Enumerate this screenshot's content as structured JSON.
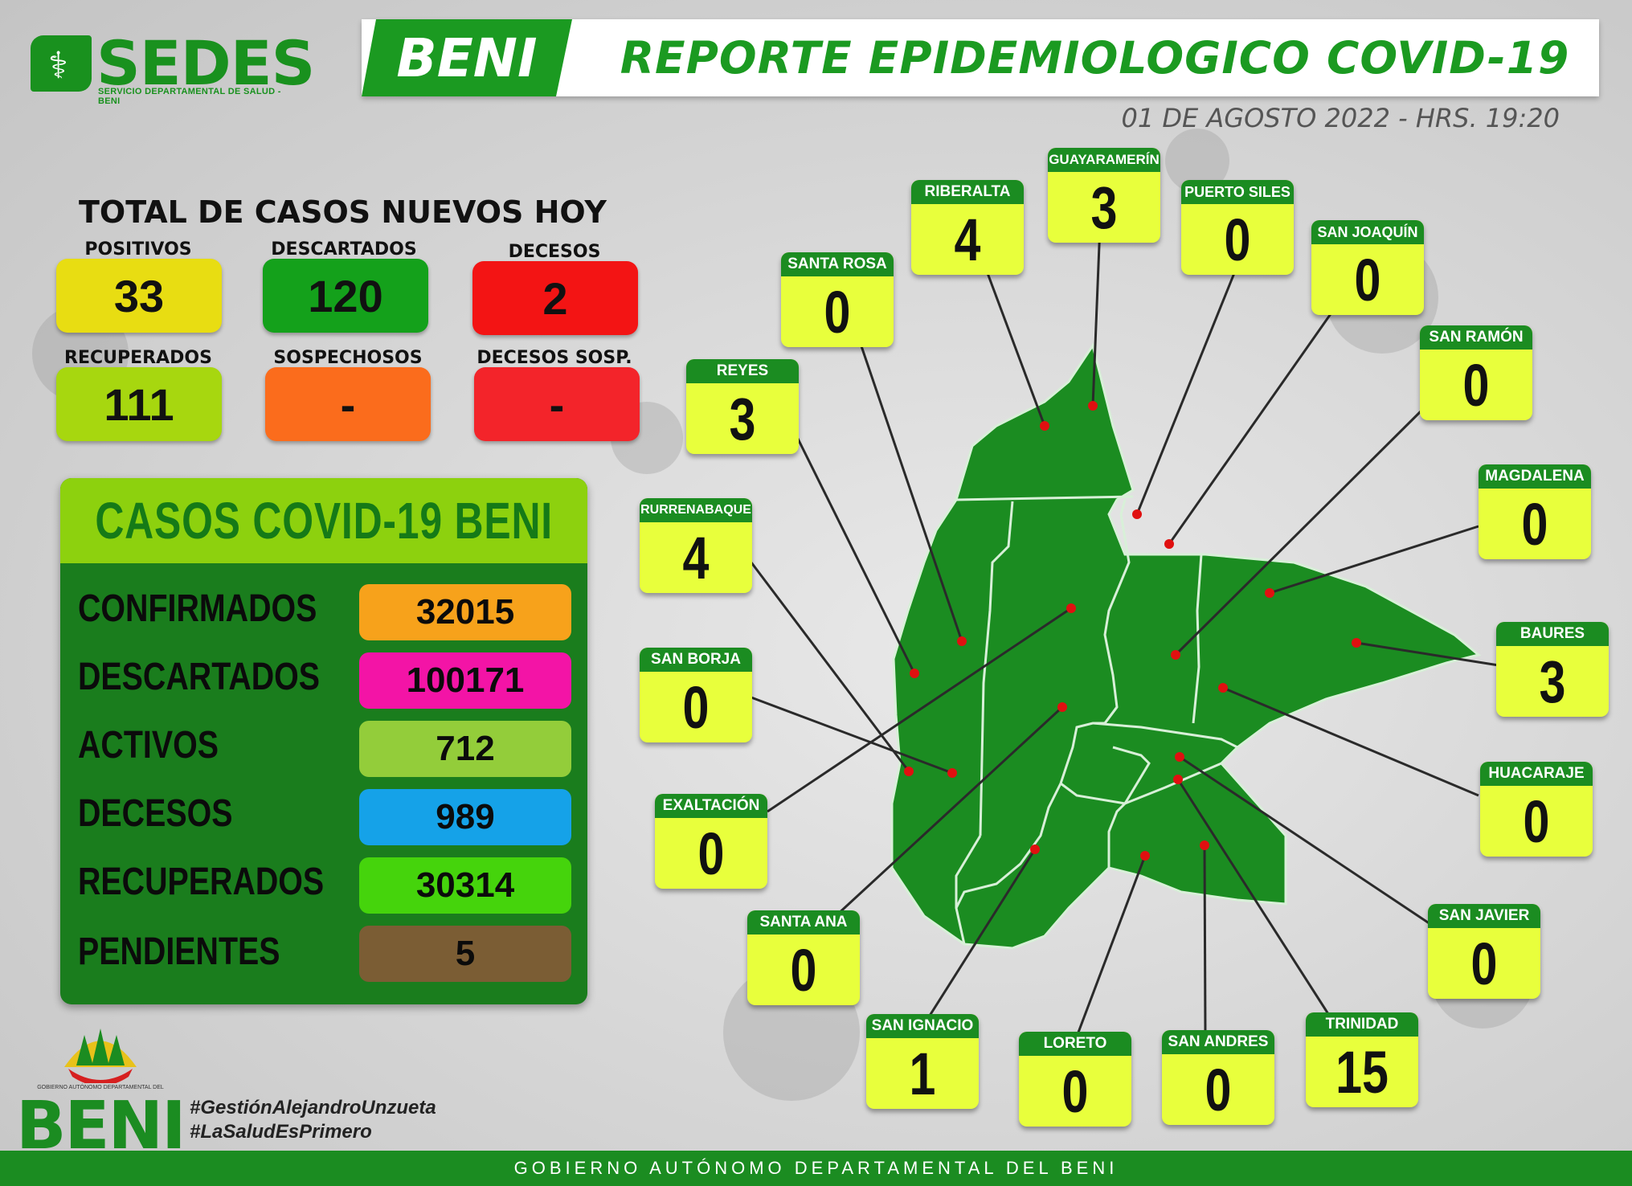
{
  "header": {
    "logo_word": "SEDES",
    "logo_sub": "SERVICIO DEPARTAMENTAL DE SALUD - BENI",
    "region_tab": "BENI",
    "title": "REPORTE EPIDEMIOLOGICO COVID-19",
    "date": "01 DE AGOSTO 2022  -  HRS. 19:20"
  },
  "totals": {
    "title": "TOTAL DE CASOS NUEVOS HOY",
    "items": [
      {
        "label": "POSITIVOS",
        "value": "33",
        "color": "#e8dd12"
      },
      {
        "label": "DESCARTADOS",
        "value": "120",
        "color": "#14a11b"
      },
      {
        "label": "DECESOS",
        "value": "2",
        "color": "#f31414"
      },
      {
        "label": "RECUPERADOS",
        "value": "111",
        "color": "#a7d70f"
      },
      {
        "label": "SOSPECHOSOS",
        "value": "-",
        "color": "#fb6c1c"
      },
      {
        "label": "DECESOS SOSP.",
        "value": "-",
        "color": "#f3242a"
      }
    ]
  },
  "panel": {
    "title": "CASOS COVID-19 BENI",
    "rows": [
      {
        "label": "CONFIRMADOS",
        "value": "32015",
        "color": "#f7a21b"
      },
      {
        "label": "DESCARTADOS",
        "value": "100171",
        "color": "#f314a6"
      },
      {
        "label": "ACTIVOS",
        "value": "712",
        "color": "#93cd3a"
      },
      {
        "label": "DECESOS",
        "value": "989",
        "color": "#15a2e8"
      },
      {
        "label": "RECUPERADOS",
        "value": "30314",
        "color": "#45d40c"
      },
      {
        "label": "PENDIENTES",
        "value": "5",
        "color": "#7b5d34"
      }
    ]
  },
  "municipalities": [
    {
      "name": "RIBERALTA",
      "value": "4"
    },
    {
      "name": "GUAYARAMERÍN",
      "value": "3"
    },
    {
      "name": "PUERTO SILES",
      "value": "0"
    },
    {
      "name": "SAN JOAQUÍN",
      "value": "0"
    },
    {
      "name": "SANTA ROSA",
      "value": "0"
    },
    {
      "name": "SAN RAMÓN",
      "value": "0"
    },
    {
      "name": "REYES",
      "value": "3"
    },
    {
      "name": "MAGDALENA",
      "value": "0"
    },
    {
      "name": "RURRENABAQUE",
      "value": "4"
    },
    {
      "name": "BAURES",
      "value": "3"
    },
    {
      "name": "SAN BORJA",
      "value": "0"
    },
    {
      "name": "HUACARAJE",
      "value": "0"
    },
    {
      "name": "EXALTACIÓN",
      "value": "0"
    },
    {
      "name": "SAN JAVIER",
      "value": "0"
    },
    {
      "name": "SANTA ANA",
      "value": "0"
    },
    {
      "name": "TRINIDAD",
      "value": "15"
    },
    {
      "name": "SAN IGNACIO",
      "value": "1"
    },
    {
      "name": "LORETO",
      "value": "0"
    },
    {
      "name": "SAN ANDRES",
      "value": "0"
    }
  ],
  "gov_logo": {
    "small_text": "GOBIERNO AUTÓNOMO DEPARTAMENTAL DEL",
    "word": "BENI"
  },
  "hashtags": [
    "#GestiónAlejandroUnzueta",
    "#LaSaludEsPrimero"
  ],
  "footer": "GOBIERNO AUTÓNOMO DEPARTAMENTAL DEL BENI"
}
